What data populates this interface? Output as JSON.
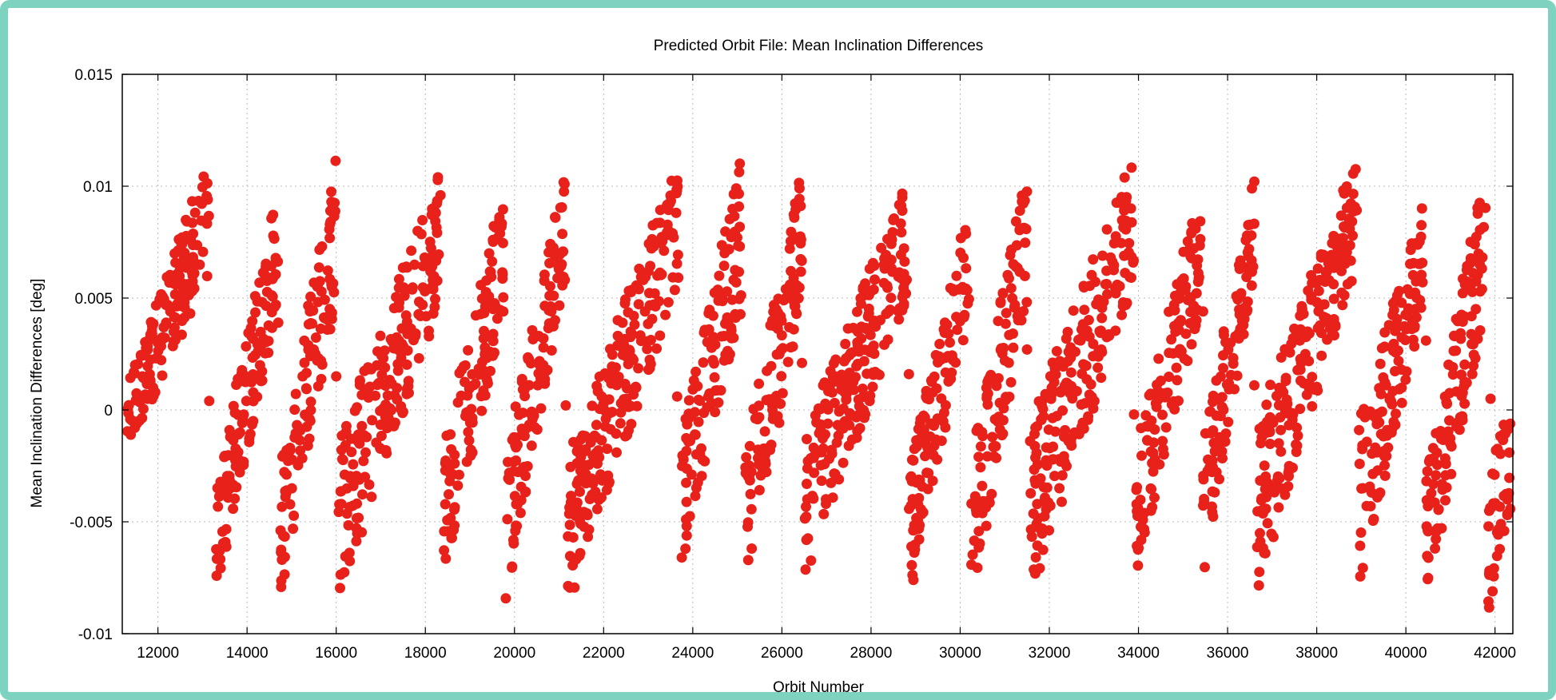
{
  "chart_data": {
    "type": "scatter",
    "title": "Predicted Orbit File: Mean Inclination Differences",
    "xlabel": "Orbit Number",
    "ylabel": "Mean Inclination Differences [deg]",
    "xlim": [
      11200,
      42400
    ],
    "ylim": [
      -0.01,
      0.015
    ],
    "x_ticks": [
      12000,
      14000,
      16000,
      18000,
      20000,
      22000,
      24000,
      26000,
      28000,
      30000,
      32000,
      34000,
      36000,
      38000,
      40000,
      42000
    ],
    "y_ticks": [
      -0.01,
      -0.005,
      0,
      0.005,
      0.01,
      0.015
    ],
    "x_tick_labels": [
      "12000",
      "14000",
      "16000",
      "18000",
      "20000",
      "22000",
      "24000",
      "26000",
      "28000",
      "30000",
      "32000",
      "34000",
      "36000",
      "38000",
      "40000",
      "42000"
    ],
    "y_tick_labels": [
      "-0.01",
      "-0.005",
      "0",
      "0.005",
      "0.01",
      "0.015"
    ],
    "grid": true,
    "legend": "none",
    "marker_color": "#e8211a",
    "bands": [
      {
        "x_start": 11300,
        "x_end": 13150,
        "y_low_start": -0.002,
        "y_low_end": 0.006,
        "y_high_start": 0.001,
        "y_high_end": 0.0115
      },
      {
        "x_start": 13300,
        "x_end": 14700,
        "y_low_start": -0.0083,
        "y_low_end": 0.0045,
        "y_high_start": -0.003,
        "y_high_end": 0.01
      },
      {
        "x_start": 14750,
        "x_end": 16000,
        "y_low_start": -0.0085,
        "y_low_end": 0.005,
        "y_high_start": -0.002,
        "y_high_end": 0.0115
      },
      {
        "x_start": 16050,
        "x_end": 18350,
        "y_low_start": -0.0085,
        "y_low_end": 0.0048,
        "y_high_start": -0.001,
        "y_high_end": 0.011
      },
      {
        "x_start": 18400,
        "x_end": 19750,
        "y_low_start": -0.0075,
        "y_low_end": 0.004,
        "y_high_start": -0.0015,
        "y_high_end": 0.0102
      },
      {
        "x_start": 19800,
        "x_end": 21150,
        "y_low_start": -0.0086,
        "y_low_end": 0.006,
        "y_high_start": -0.002,
        "y_high_end": 0.011
      },
      {
        "x_start": 21200,
        "x_end": 23700,
        "y_low_start": -0.0088,
        "y_low_end": 0.0055,
        "y_high_start": -0.002,
        "y_high_end": 0.0115
      },
      {
        "x_start": 23750,
        "x_end": 25100,
        "y_low_start": -0.007,
        "y_low_end": 0.0045,
        "y_high_start": -0.001,
        "y_high_end": 0.0115
      },
      {
        "x_start": 25150,
        "x_end": 26450,
        "y_low_start": -0.0085,
        "y_low_end": 0.0045,
        "y_high_start": -0.002,
        "y_high_end": 0.011
      },
      {
        "x_start": 26500,
        "x_end": 28800,
        "y_low_start": -0.008,
        "y_low_end": 0.005,
        "y_high_start": -0.001,
        "y_high_end": 0.0105
      },
      {
        "x_start": 28850,
        "x_end": 30200,
        "y_low_start": -0.0082,
        "y_low_end": 0.004,
        "y_high_start": -0.0025,
        "y_high_end": 0.0093
      },
      {
        "x_start": 30250,
        "x_end": 31500,
        "y_low_start": -0.0088,
        "y_low_end": 0.0045,
        "y_high_start": -0.002,
        "y_high_end": 0.011
      },
      {
        "x_start": 31550,
        "x_end": 33900,
        "y_low_start": -0.0085,
        "y_low_end": 0.0055,
        "y_high_start": -0.0005,
        "y_high_end": 0.0115
      },
      {
        "x_start": 33950,
        "x_end": 35400,
        "y_low_start": -0.0075,
        "y_low_end": 0.0045,
        "y_high_start": -0.0015,
        "y_high_end": 0.0102
      },
      {
        "x_start": 35450,
        "x_end": 36600,
        "y_low_start": -0.0075,
        "y_low_end": 0.006,
        "y_high_start": -0.001,
        "y_high_end": 0.0105
      },
      {
        "x_start": 36650,
        "x_end": 38900,
        "y_low_start": -0.0082,
        "y_low_end": 0.0065,
        "y_high_start": -0.0005,
        "y_high_end": 0.0115
      },
      {
        "x_start": 38950,
        "x_end": 40400,
        "y_low_start": -0.008,
        "y_low_end": 0.0045,
        "y_high_start": -0.0005,
        "y_high_end": 0.0095
      },
      {
        "x_start": 40450,
        "x_end": 41800,
        "y_low_start": -0.0088,
        "y_low_end": 0.0045,
        "y_high_start": -0.003,
        "y_high_end": 0.0115
      },
      {
        "x_start": 41850,
        "x_end": 42350,
        "y_low_start": -0.009,
        "y_low_end": -0.005,
        "y_high_start": -0.003,
        "y_high_end": 0.0005
      }
    ],
    "isolated_points": [
      {
        "x": 13150,
        "y": 0.0004
      },
      {
        "x": 14700,
        "y": 0.0039
      },
      {
        "x": 16000,
        "y": 0.0015
      },
      {
        "x": 19750,
        "y": 0.0044
      },
      {
        "x": 21150,
        "y": 0.0002
      },
      {
        "x": 23650,
        "y": 0.0006
      },
      {
        "x": 26450,
        "y": 0.0021
      },
      {
        "x": 28850,
        "y": 0.0016
      },
      {
        "x": 28950,
        "y": -0.0076
      },
      {
        "x": 31500,
        "y": 0.0027
      },
      {
        "x": 33900,
        "y": -0.0002
      },
      {
        "x": 35450,
        "y": 0.0044
      },
      {
        "x": 36600,
        "y": 0.0011
      },
      {
        "x": 38950,
        "y": -0.0009
      },
      {
        "x": 40450,
        "y": 0.0031
      },
      {
        "x": 41900,
        "y": 0.0005
      }
    ]
  }
}
